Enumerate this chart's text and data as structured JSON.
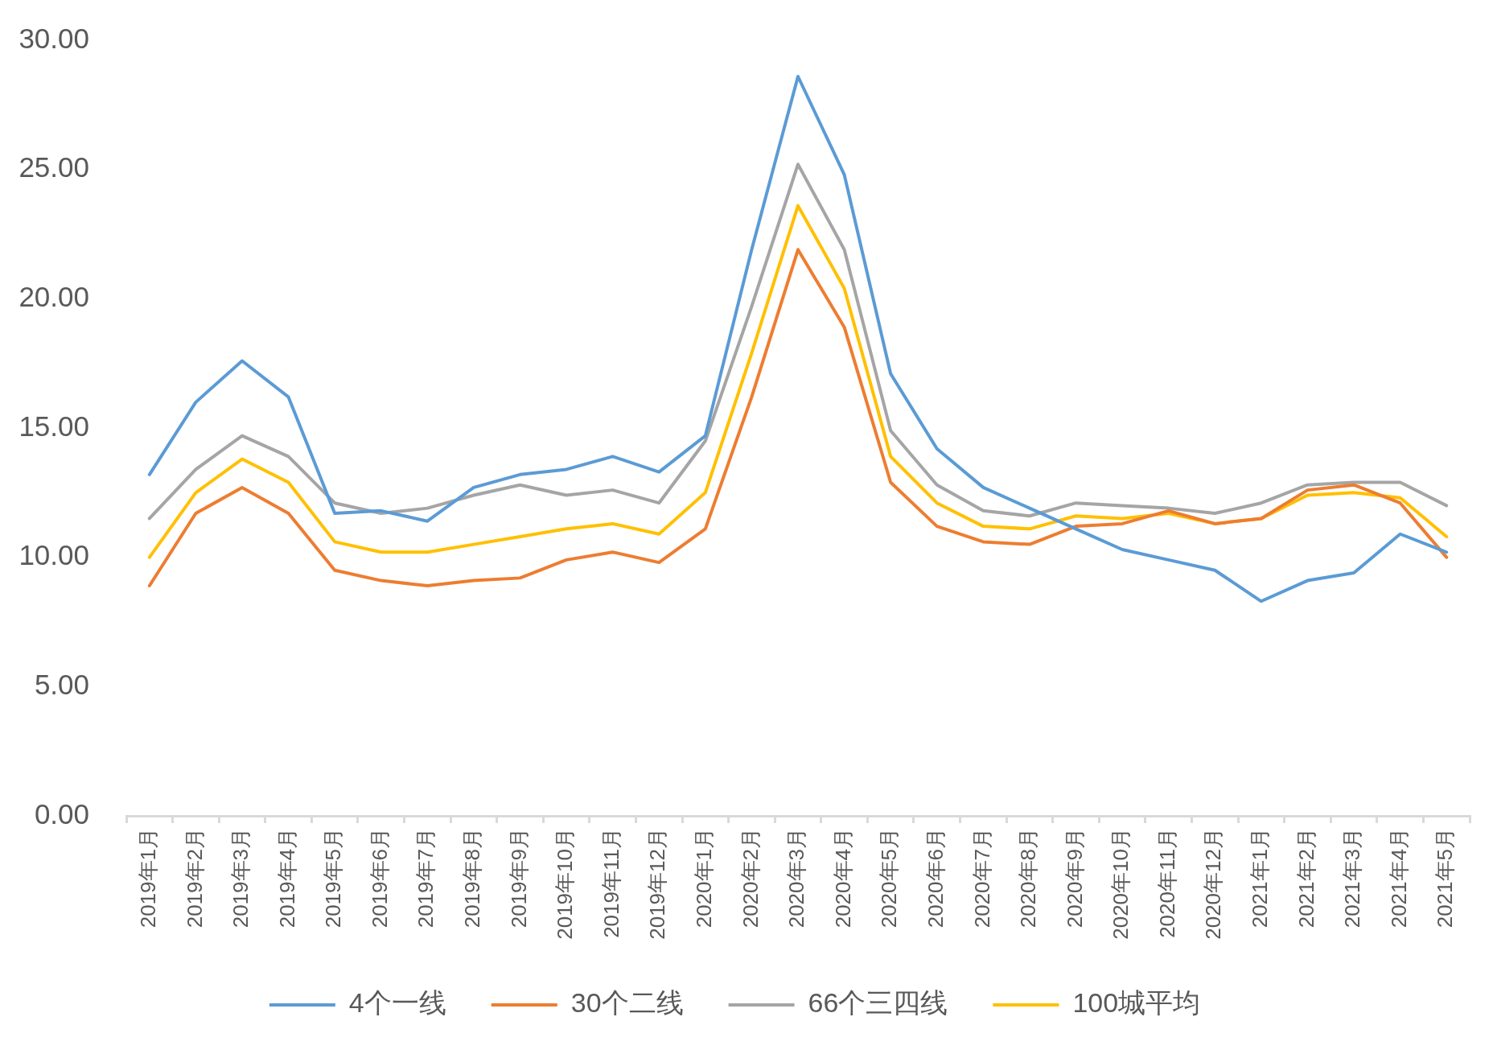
{
  "chart_data": {
    "type": "line",
    "categories": [
      "2019年1月",
      "2019年2月",
      "2019年3月",
      "2019年4月",
      "2019年5月",
      "2019年6月",
      "2019年7月",
      "2019年8月",
      "2019年9月",
      "2019年10月",
      "2019年11月",
      "2019年12月",
      "2020年1月",
      "2020年2月",
      "2020年3月",
      "2020年4月",
      "2020年5月",
      "2020年6月",
      "2020年7月",
      "2020年8月",
      "2020年9月",
      "2020年10月",
      "2020年11月",
      "2020年12月",
      "2021年1月",
      "2021年2月",
      "2021年3月",
      "2021年4月",
      "2021年5月"
    ],
    "series": [
      {
        "name": "4个一线",
        "color": "#5b9bd5",
        "values": [
          13.2,
          16.0,
          17.6,
          16.2,
          11.7,
          11.8,
          11.4,
          12.7,
          13.2,
          13.4,
          13.9,
          13.3,
          14.7,
          21.9,
          28.6,
          24.8,
          17.1,
          14.2,
          12.7,
          11.9,
          11.1,
          10.3,
          9.9,
          9.5,
          8.3,
          9.1,
          9.4,
          10.9,
          10.2
        ]
      },
      {
        "name": "30个二线",
        "color": "#ed7d31",
        "values": [
          8.9,
          11.7,
          12.7,
          11.7,
          9.5,
          9.1,
          8.9,
          9.1,
          9.2,
          9.9,
          10.2,
          9.8,
          11.1,
          16.2,
          21.9,
          18.9,
          12.9,
          11.2,
          10.6,
          10.5,
          11.2,
          11.3,
          11.8,
          11.3,
          11.5,
          12.6,
          12.8,
          12.1,
          10.0
        ]
      },
      {
        "name": "66个三四线",
        "color": "#a5a5a5",
        "values": [
          11.5,
          13.4,
          14.7,
          13.9,
          12.1,
          11.7,
          11.9,
          12.4,
          12.8,
          12.4,
          12.6,
          12.1,
          14.5,
          19.7,
          25.2,
          21.9,
          14.9,
          12.8,
          11.8,
          11.6,
          12.1,
          12.0,
          11.9,
          11.7,
          12.1,
          12.8,
          12.9,
          12.9,
          12.0
        ]
      },
      {
        "name": "100城平均",
        "color": "#ffc000",
        "values": [
          10.0,
          12.5,
          13.8,
          12.9,
          10.6,
          10.2,
          10.2,
          10.5,
          10.8,
          11.1,
          11.3,
          10.9,
          12.5,
          17.9,
          23.6,
          20.4,
          13.9,
          12.1,
          11.2,
          11.1,
          11.6,
          11.5,
          11.7,
          11.3,
          11.5,
          12.4,
          12.5,
          12.3,
          10.8
        ]
      }
    ],
    "ylim": [
      0,
      30
    ],
    "yticks": [
      {
        "value": 0,
        "label": "0.00"
      },
      {
        "value": 5,
        "label": "5.00"
      },
      {
        "value": 10,
        "label": "10.00"
      },
      {
        "value": 15,
        "label": "15.00"
      },
      {
        "value": 20,
        "label": "20.00"
      },
      {
        "value": 25,
        "label": "25.00"
      },
      {
        "value": 30,
        "label": "30.00"
      }
    ],
    "grid": false,
    "legend": "bottom",
    "marker": "none",
    "line_style": "solid"
  }
}
